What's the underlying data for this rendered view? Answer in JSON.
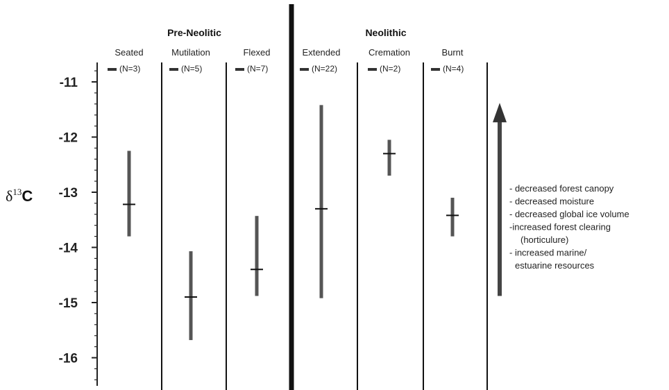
{
  "chart_data": {
    "type": "range",
    "ylabel": {
      "symbol": "δ",
      "superscript": "13",
      "element": "C"
    },
    "ylim": [
      -16.5,
      -10.4
    ],
    "yticks": [
      -11,
      -12,
      -13,
      -14,
      -15,
      -16
    ],
    "ytick_labels": [
      "-11",
      "-12",
      "-13",
      "-14",
      "-15",
      "-16"
    ],
    "groups": [
      {
        "label": "Pre-Neolitic"
      },
      {
        "label": "Neolithic"
      }
    ],
    "categories": [
      {
        "label": "Seated",
        "n_label": "(N=3)",
        "group": 0,
        "mean": -13.22,
        "min": -13.8,
        "max": -12.25
      },
      {
        "label": "Mutilation",
        "n_label": "(N=5)",
        "group": 0,
        "mean": -14.9,
        "min": -15.68,
        "max": -14.07
      },
      {
        "label": "Flexed",
        "n_label": "(N=7)",
        "group": 0,
        "mean": -14.4,
        "min": -14.88,
        "max": -13.43
      },
      {
        "label": "Extended",
        "n_label": "(N=22)",
        "group": 1,
        "mean": -13.3,
        "min": -14.92,
        "max": -11.42
      },
      {
        "label": "Cremation",
        "n_label": "(N=2)",
        "group": 1,
        "mean": -12.3,
        "min": -12.7,
        "max": -12.05
      },
      {
        "label": "Burnt",
        "n_label": "(N=4)",
        "group": 1,
        "mean": -13.42,
        "min": -13.8,
        "max": -13.1
      }
    ],
    "annotation": {
      "lines": [
        "- decreased forest canopy",
        "- decreased moisture",
        "- decreased global ice volume",
        "-increased forest clearing",
        "(horticulure)",
        "- increased marine/",
        "estuarine resources"
      ],
      "arrow_from": -14.88,
      "arrow_to": -11.38
    }
  }
}
